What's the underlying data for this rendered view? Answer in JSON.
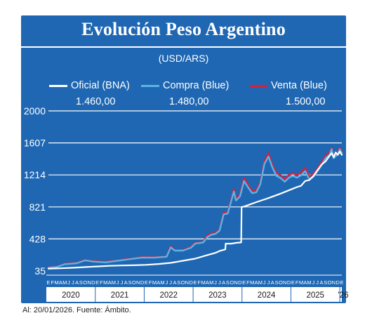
{
  "chart_data": {
    "type": "line",
    "title": "Evolución Peso Argentino",
    "subtitle": "(USD/ARS)",
    "ylim": [
      35,
      2000
    ],
    "y_ticks": [
      35,
      428,
      821,
      1214,
      1607,
      2000
    ],
    "grid": true,
    "legend_position": "top",
    "x_range": [
      "2020-01",
      "2026-01"
    ],
    "month_letters": [
      "E",
      "F",
      "M",
      "A",
      "M",
      "J",
      "J",
      "A",
      "S",
      "O",
      "N",
      "D"
    ],
    "year_labels": [
      "2020",
      "2021",
      "2022",
      "2023",
      "2024",
      "2025",
      "'26"
    ],
    "series": [
      {
        "name": "Oficial (BNA)",
        "color": "#ffffff",
        "last_value": "1.460,00",
        "points": [
          [
            "2020-01",
            63
          ],
          [
            "2020-04",
            68
          ],
          [
            "2020-07",
            74
          ],
          [
            "2020-10",
            82
          ],
          [
            "2021-01",
            90
          ],
          [
            "2021-04",
            98
          ],
          [
            "2021-07",
            102
          ],
          [
            "2021-10",
            105
          ],
          [
            "2022-01",
            110
          ],
          [
            "2022-04",
            120
          ],
          [
            "2022-07",
            134
          ],
          [
            "2022-10",
            160
          ],
          [
            "2023-01",
            186
          ],
          [
            "2023-04",
            230
          ],
          [
            "2023-06",
            257
          ],
          [
            "2023-07",
            280
          ],
          [
            "2023-08.4",
            300
          ],
          [
            "2023-08.5",
            370
          ],
          [
            "2023-09",
            370
          ],
          [
            "2023-10",
            370
          ],
          [
            "2023-11",
            380
          ],
          [
            "2023-12.3",
            385
          ],
          [
            "2023-12.4",
            820
          ],
          [
            "2024-01",
            825
          ],
          [
            "2024-04",
            880
          ],
          [
            "2024-07",
            930
          ],
          [
            "2024-10",
            985
          ],
          [
            "2025-01",
            1045
          ],
          [
            "2025-02",
            1065
          ],
          [
            "2025-03",
            1080
          ],
          [
            "2025-04",
            1140
          ],
          [
            "2025-05",
            1150
          ],
          [
            "2025-06",
            1200
          ],
          [
            "2025-07",
            1270
          ],
          [
            "2025-08",
            1340
          ],
          [
            "2025-09",
            1380
          ],
          [
            "2025-10",
            1450
          ],
          [
            "2025-10.5",
            1480
          ],
          [
            "2025-11",
            1430
          ],
          [
            "2025-11.5",
            1490
          ],
          [
            "2025-12",
            1460
          ],
          [
            "2025-12.5",
            1500
          ],
          [
            "2026-01",
            1460
          ]
        ]
      },
      {
        "name": "Compra (Blue)",
        "color": "#5bb3e6",
        "last_value": "1.480,00",
        "points": [
          [
            "2020-01",
            75
          ],
          [
            "2020-03",
            82
          ],
          [
            "2020-05",
            118
          ],
          [
            "2020-08",
            130
          ],
          [
            "2020-10",
            165
          ],
          [
            "2020-12",
            150
          ],
          [
            "2021-03",
            140
          ],
          [
            "2021-06",
            160
          ],
          [
            "2021-09",
            180
          ],
          [
            "2021-12",
            200
          ],
          [
            "2022-03",
            198
          ],
          [
            "2022-06",
            210
          ],
          [
            "2022-07",
            325
          ],
          [
            "2022-08",
            285
          ],
          [
            "2022-10",
            285
          ],
          [
            "2022-12",
            320
          ],
          [
            "2023-01",
            370
          ],
          [
            "2023-03",
            385
          ],
          [
            "2023-04",
            450
          ],
          [
            "2023-05",
            480
          ],
          [
            "2023-06",
            490
          ],
          [
            "2023-07",
            530
          ],
          [
            "2023-08",
            730
          ],
          [
            "2023-09",
            740
          ],
          [
            "2023-10",
            920
          ],
          [
            "2023-10.5",
            1010
          ],
          [
            "2023-11",
            900
          ],
          [
            "2023-12",
            950
          ],
          [
            "2024-01",
            1140
          ],
          [
            "2024-02",
            1060
          ],
          [
            "2024-03",
            990
          ],
          [
            "2024-04",
            1000
          ],
          [
            "2024-05",
            1100
          ],
          [
            "2024-06",
            1350
          ],
          [
            "2024-07",
            1440
          ],
          [
            "2024-08",
            1300
          ],
          [
            "2024-09",
            1200
          ],
          [
            "2024-10",
            1175
          ],
          [
            "2024-11",
            1130
          ],
          [
            "2024-12",
            1180
          ],
          [
            "2025-01",
            1200
          ],
          [
            "2025-02",
            1180
          ],
          [
            "2025-03",
            1210
          ],
          [
            "2025-04",
            1260
          ],
          [
            "2025-05",
            1160
          ],
          [
            "2025-06",
            1190
          ],
          [
            "2025-07",
            1260
          ],
          [
            "2025-08",
            1330
          ],
          [
            "2025-09",
            1420
          ],
          [
            "2025-10",
            1460
          ],
          [
            "2025-10.5",
            1530
          ],
          [
            "2025-11",
            1420
          ],
          [
            "2025-12",
            1470
          ],
          [
            "2025-12.5",
            1530
          ],
          [
            "2026-01",
            1480
          ]
        ]
      },
      {
        "name": "Venta (Blue)",
        "color": "#d9203a",
        "last_value": "1.500,00",
        "points": [
          [
            "2020-01",
            78
          ],
          [
            "2020-03",
            86
          ],
          [
            "2020-05",
            124
          ],
          [
            "2020-08",
            136
          ],
          [
            "2020-10",
            172
          ],
          [
            "2020-12",
            156
          ],
          [
            "2021-03",
            146
          ],
          [
            "2021-06",
            166
          ],
          [
            "2021-09",
            186
          ],
          [
            "2021-12",
            206
          ],
          [
            "2022-03",
            204
          ],
          [
            "2022-06",
            216
          ],
          [
            "2022-07",
            338
          ],
          [
            "2022-08",
            292
          ],
          [
            "2022-10",
            294
          ],
          [
            "2022-12",
            330
          ],
          [
            "2023-01",
            380
          ],
          [
            "2023-03",
            396
          ],
          [
            "2023-04",
            470
          ],
          [
            "2023-05",
            496
          ],
          [
            "2023-06",
            500
          ],
          [
            "2023-07",
            548
          ],
          [
            "2023-08",
            750
          ],
          [
            "2023-09",
            760
          ],
          [
            "2023-10",
            940
          ],
          [
            "2023-10.5",
            1040
          ],
          [
            "2023-11",
            920
          ],
          [
            "2023-12",
            975
          ],
          [
            "2024-01",
            1175
          ],
          [
            "2024-02",
            1090
          ],
          [
            "2024-03",
            1015
          ],
          [
            "2024-04",
            1025
          ],
          [
            "2024-05",
            1125
          ],
          [
            "2024-06",
            1380
          ],
          [
            "2024-07",
            1480
          ],
          [
            "2024-08",
            1330
          ],
          [
            "2024-09",
            1235
          ],
          [
            "2024-10",
            1210
          ],
          [
            "2024-11",
            1160
          ],
          [
            "2024-12",
            1215
          ],
          [
            "2025-01",
            1235
          ],
          [
            "2025-02",
            1210
          ],
          [
            "2025-03",
            1245
          ],
          [
            "2025-04",
            1300
          ],
          [
            "2025-05",
            1195
          ],
          [
            "2025-06",
            1225
          ],
          [
            "2025-07",
            1290
          ],
          [
            "2025-08",
            1365
          ],
          [
            "2025-09",
            1450
          ],
          [
            "2025-10",
            1490
          ],
          [
            "2025-10.5",
            1545
          ],
          [
            "2025-11",
            1445
          ],
          [
            "2025-12",
            1490
          ],
          [
            "2025-12.5",
            1550
          ],
          [
            "2026-01",
            1500
          ]
        ]
      }
    ]
  },
  "footnote": "Al: 20/01/2026. Fuente: Ámbito."
}
